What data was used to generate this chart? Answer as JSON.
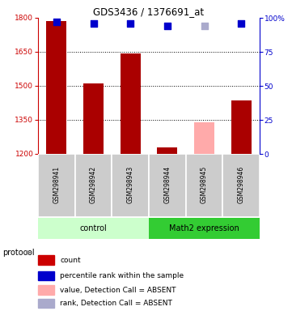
{
  "title": "GDS3436 / 1376691_at",
  "samples": [
    "GSM298941",
    "GSM298942",
    "GSM298943",
    "GSM298944",
    "GSM298945",
    "GSM298946"
  ],
  "bar_values": [
    1785,
    1510,
    1642,
    1228,
    1340,
    1437
  ],
  "bar_colors": [
    "#aa0000",
    "#aa0000",
    "#aa0000",
    "#aa0000",
    "#ffaaaa",
    "#aa0000"
  ],
  "rank_values": [
    97,
    96,
    96,
    94,
    94,
    96
  ],
  "rank_colors": [
    "#0000cc",
    "#0000cc",
    "#0000cc",
    "#0000cc",
    "#aaaacc",
    "#0000cc"
  ],
  "ylim_left": [
    1200,
    1800
  ],
  "ylim_right": [
    0,
    100
  ],
  "yticks_left": [
    1200,
    1350,
    1500,
    1650,
    1800
  ],
  "yticks_right": [
    0,
    25,
    50,
    75,
    100
  ],
  "group_box_color_light": "#ccffcc",
  "group_box_color_dark": "#33cc33",
  "sample_box_color": "#cccccc",
  "left_axis_color": "#cc0000",
  "right_axis_color": "#0000cc",
  "legend_items": [
    {
      "color": "#cc0000",
      "label": "count"
    },
    {
      "color": "#0000cc",
      "label": "percentile rank within the sample"
    },
    {
      "color": "#ffaaaa",
      "label": "value, Detection Call = ABSENT"
    },
    {
      "color": "#aaaacc",
      "label": "rank, Detection Call = ABSENT"
    }
  ],
  "bar_width": 0.55
}
